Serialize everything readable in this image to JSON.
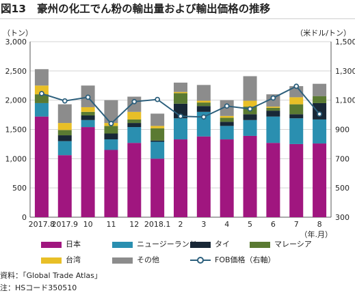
{
  "header": {
    "fig_number": "図13",
    "title": "豪州の化工でん粉の輸出量および輸出価格の推移"
  },
  "left_unit": "（トン）",
  "right_unit": "（米ドル/トン）",
  "x_unit": "（年.月）",
  "footnotes": {
    "source": "資料：「Global Trade Atlas」",
    "note": "注：HSコード350510"
  },
  "colors": {
    "japan": "#a0167f",
    "nz": "#2a8fb0",
    "thailand": "#182736",
    "malaysia": "#5a7a32",
    "taiwan": "#e8bf27",
    "other": "#8c8c8c",
    "fob": "#2c5f7c",
    "grid": "#d3d3d3"
  },
  "chart_data": {
    "type": "bar",
    "stacked": true,
    "categories": [
      "2017.8",
      "2017.9",
      "10",
      "11",
      "12",
      "2018.1",
      "2",
      "3",
      "4",
      "5",
      "6",
      "7",
      "8"
    ],
    "series": [
      {
        "name": "日本",
        "key": "japan",
        "values": [
          1720,
          1060,
          1540,
          1150,
          1270,
          1000,
          1330,
          1380,
          1330,
          1390,
          1270,
          1250,
          1260
        ]
      },
      {
        "name": "ニュージーランド",
        "key": "nz",
        "values": [
          230,
          240,
          120,
          180,
          270,
          290,
          360,
          420,
          230,
          270,
          450,
          440,
          410
        ]
      },
      {
        "name": "タイ",
        "key": "thailand",
        "values": [
          0,
          100,
          80,
          100,
          70,
          20,
          250,
          100,
          70,
          100,
          100,
          70,
          280
        ]
      },
      {
        "name": "マレーシア",
        "key": "malaysia",
        "values": [
          150,
          90,
          60,
          130,
          60,
          210,
          180,
          60,
          70,
          130,
          50,
          170,
          120
        ]
      },
      {
        "name": "台湾",
        "key": "taiwan",
        "values": [
          150,
          120,
          80,
          50,
          130,
          40,
          20,
          30,
          30,
          100,
          20,
          120,
          0
        ]
      },
      {
        "name": "その他",
        "key": "other",
        "values": [
          280,
          320,
          370,
          390,
          260,
          210,
          160,
          270,
          270,
          420,
          210,
          190,
          210
        ]
      }
    ],
    "line": {
      "name": "FOB価格（右軸）",
      "key": "fob",
      "values": [
        1145,
        1095,
        1120,
        940,
        1090,
        1105,
        990,
        985,
        1060,
        1040,
        1115,
        1195,
        1005
      ]
    },
    "ylim": [
      0,
      3000
    ],
    "yticks": [
      0,
      500,
      1000,
      1500,
      2000,
      2500,
      3000
    ],
    "ytick_labels": [
      "0",
      "500",
      "1,000",
      "1,500",
      "2,000",
      "2,500",
      "3,000"
    ],
    "y2lim": [
      300,
      1500
    ],
    "y2ticks": [
      300,
      500,
      700,
      900,
      1100,
      1300,
      1500
    ],
    "y2tick_labels": [
      "300",
      "500",
      "700",
      "900",
      "1,100",
      "1,300",
      "1,500"
    ],
    "legend_position": "bottom",
    "grid": true
  }
}
